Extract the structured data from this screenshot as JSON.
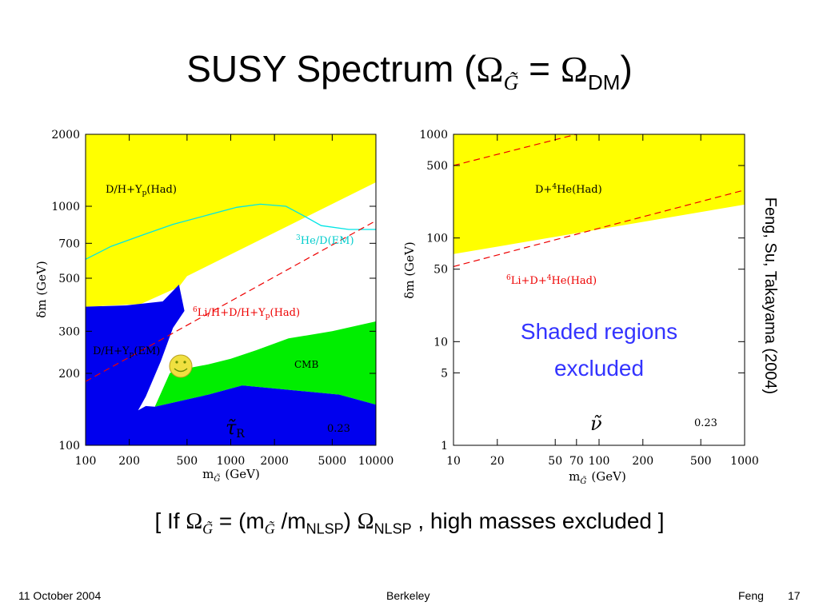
{
  "slide": {
    "title_text": "SUSY Spectrum (",
    "title_omega1": "Ω",
    "title_sub1": "G̃",
    "title_eq": " = ",
    "title_omega2": "Ω",
    "title_sub2": "DM",
    "title_close": ")",
    "side_credit": "Feng, Su, Takayama  (2004)",
    "shaded_note_line1": "Shaded regions",
    "shaded_note_line2": "excluded",
    "formula_open": "[ If ",
    "formula_omega1": "Ω",
    "formula_sub1": "G̃",
    "formula_mid": " = (m",
    "formula_sub2": "G̃",
    "formula_slash": " /m",
    "formula_sub3": "NLSP",
    "formula_paren": ") ",
    "formula_omega2": "Ω",
    "formula_sub4": "NLSP",
    "formula_tail": " , high masses excluded ]",
    "footer_date": "11 October 2004",
    "footer_place": "Berkeley",
    "footer_author": "Feng",
    "footer_page": "17"
  },
  "colors": {
    "excluded_yellow": "#ffff00",
    "excluded_blue": "#0000ee",
    "cmb_green": "#00ee00",
    "cyan": "#00e5e5",
    "red": "#ee0000",
    "smiley": "#f0e040"
  },
  "chart_data": [
    {
      "type": "area",
      "log_x": true,
      "log_y": true,
      "xlim": [
        100,
        10000
      ],
      "ylim": [
        100,
        2000
      ],
      "xlabel": "m",
      "xlabel_sub": "G̃",
      "xlabel_unit": "(GeV)",
      "ylabel": "δm (GeV)",
      "xticks": [
        100,
        200,
        500,
        1000,
        2000,
        5000,
        10000
      ],
      "xtick_labels": [
        "100",
        "200",
        "500",
        "1000",
        "2000",
        "5000",
        "10000"
      ],
      "yticks": [
        100,
        200,
        300,
        500,
        700,
        1000,
        2000
      ],
      "ytick_labels": [
        "100",
        "200",
        "300",
        "500",
        "700",
        "1000",
        "2000"
      ],
      "region_labels": {
        "had": "D/H+Y",
        "had_sub": "p",
        "had_tail": "(Had)",
        "he3": "He/D(EM)",
        "he3_sup": "3",
        "li6": "Li/H+D/H+Y",
        "li6_sup": "6",
        "li6_sub": "p",
        "li6_tail": "(Had)",
        "em": "D/H+Y",
        "em_sub": "p",
        "em_tail": "(EM)",
        "cmb": "CMB"
      },
      "nlsp_symbol": "τ̃",
      "nlsp_sub": "R",
      "corner_value": "0.23",
      "yellow_region": [
        [
          100,
          2000
        ],
        [
          10000,
          2000
        ],
        [
          10000,
          1260
        ],
        [
          500,
          510
        ],
        [
          440,
          460
        ],
        [
          240,
          390
        ],
        [
          100,
          380
        ]
      ],
      "blue_region": [
        [
          100,
          100
        ],
        [
          10000,
          100
        ],
        [
          10000,
          148
        ],
        [
          5600,
          163
        ],
        [
          1200,
          178
        ],
        [
          700,
          163
        ],
        [
          300,
          145
        ],
        [
          260,
          146
        ],
        [
          230,
          140
        ],
        [
          260,
          160
        ],
        [
          330,
          225
        ],
        [
          400,
          310
        ],
        [
          480,
          365
        ],
        [
          440,
          470
        ],
        [
          340,
          400
        ],
        [
          190,
          385
        ],
        [
          100,
          380
        ]
      ],
      "green_region": [
        [
          300,
          145
        ],
        [
          700,
          163
        ],
        [
          1200,
          178
        ],
        [
          5600,
          163
        ],
        [
          10000,
          148
        ],
        [
          10000,
          330
        ],
        [
          5000,
          300
        ],
        [
          2500,
          280
        ],
        [
          1500,
          250
        ],
        [
          1000,
          230
        ],
        [
          700,
          218
        ],
        [
          500,
          210
        ],
        [
          420,
          208
        ],
        [
          380,
          200
        ]
      ],
      "cyan_curve": [
        [
          100,
          600
        ],
        [
          150,
          680
        ],
        [
          250,
          760
        ],
        [
          400,
          840
        ],
        [
          700,
          920
        ],
        [
          1100,
          990
        ],
        [
          1600,
          1020
        ],
        [
          2400,
          1000
        ],
        [
          3100,
          920
        ],
        [
          4200,
          830
        ],
        [
          6500,
          800
        ],
        [
          10000,
          800
        ]
      ],
      "red_line": [
        [
          100,
          185
        ],
        [
          10000,
          870
        ]
      ]
    },
    {
      "type": "area",
      "log_x": true,
      "log_y": true,
      "xlim": [
        10,
        1000
      ],
      "ylim": [
        1,
        1000
      ],
      "xlabel": "m",
      "xlabel_sub": "G̃",
      "xlabel_unit": "(GeV)",
      "ylabel": "δm (GeV)",
      "xticks": [
        10,
        20,
        50,
        70,
        100,
        200,
        500,
        1000
      ],
      "xtick_labels": [
        "10",
        "20",
        "50",
        "70",
        "100",
        "200",
        "500",
        "1000"
      ],
      "yticks": [
        1,
        5,
        10,
        50,
        100,
        500,
        1000
      ],
      "ytick_labels": [
        "1",
        "5",
        "10",
        "50",
        "100",
        "500",
        "1000"
      ],
      "region_labels": {
        "had": "D+",
        "had_sup": "4",
        "had_tail": "He(Had)",
        "li6_sup": "6",
        "li6": "Li+D+",
        "li6_sup2": "4",
        "li6_tail": "He(Had)"
      },
      "nlsp_symbol": "ν̃",
      "corner_value": "0.23",
      "yellow_region": [
        [
          10,
          1000
        ],
        [
          1000,
          1000
        ],
        [
          1000,
          210
        ],
        [
          10,
          70
        ]
      ],
      "red_upper_line": [
        [
          10,
          500
        ],
        [
          70,
          1000
        ]
      ],
      "red_lower_line": [
        [
          10,
          53
        ],
        [
          1000,
          290
        ]
      ]
    }
  ]
}
